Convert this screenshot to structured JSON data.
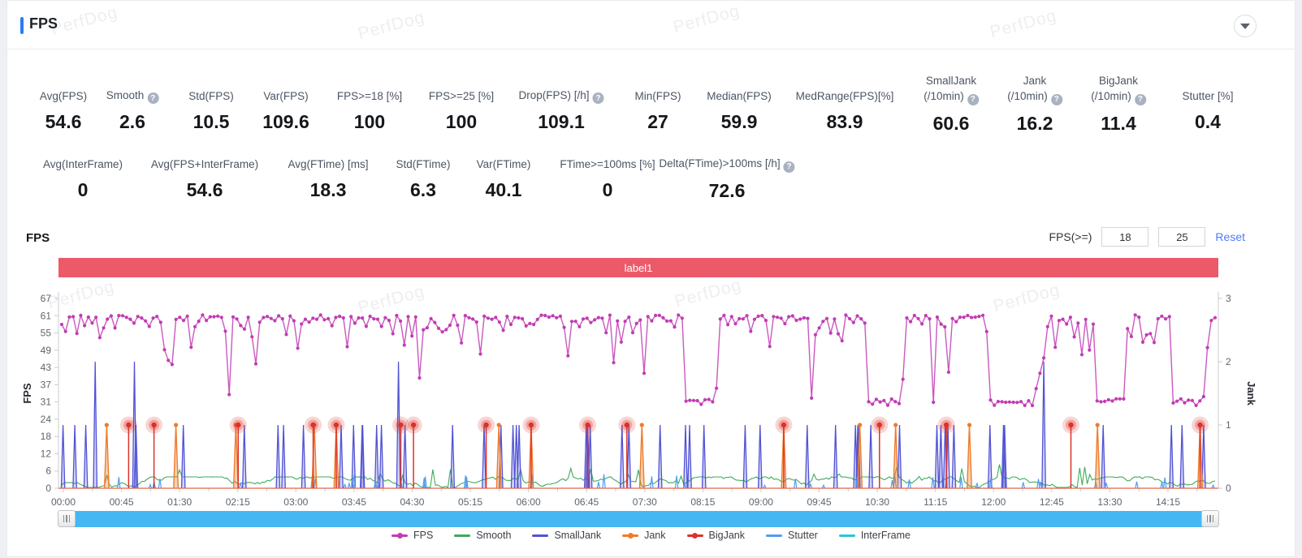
{
  "header": {
    "title": "FPS",
    "watermark": "PerfDog"
  },
  "stats_row1": [
    {
      "label": "Avg(FPS)",
      "value": "54.6"
    },
    {
      "label": "Smooth",
      "value": "2.6",
      "help": true
    },
    {
      "label": "Std(FPS)",
      "value": "10.5"
    },
    {
      "label": "Var(FPS)",
      "value": "109.6"
    },
    {
      "label": "FPS>=18 [%]",
      "value": "100"
    },
    {
      "label": "FPS>=25 [%]",
      "value": "100"
    },
    {
      "label": "Drop(FPS) [/h]",
      "value": "109.1",
      "help": true
    },
    {
      "label": "Min(FPS)",
      "value": "27"
    },
    {
      "label": "Median(FPS)",
      "value": "59.9"
    },
    {
      "label": "MedRange(FPS)[%]",
      "value": "83.9"
    },
    {
      "label": "SmallJank",
      "label2": "(/10min)",
      "value": "60.6",
      "help": true
    },
    {
      "label": "Jank",
      "label2": "(/10min)",
      "value": "16.2",
      "help": true
    },
    {
      "label": "BigJank",
      "label2": "(/10min)",
      "value": "11.4",
      "help": true
    },
    {
      "label": "Stutter [%]",
      "value": "0.4"
    }
  ],
  "stats_row2": [
    {
      "label": "Avg(InterFrame)",
      "value": "0"
    },
    {
      "label": "Avg(FPS+InterFrame)",
      "value": "54.6"
    },
    {
      "label": "Avg(FTime) [ms]",
      "value": "18.3"
    },
    {
      "label": "Std(FTime)",
      "value": "6.3"
    },
    {
      "label": "Var(FTime)",
      "value": "40.1"
    },
    {
      "label": "FTime>=100ms [%]",
      "value": "0"
    },
    {
      "label": "Delta(FTime)>100ms [/h]",
      "value": "72.6",
      "help": true
    }
  ],
  "chart_section": {
    "title": "FPS",
    "filter_label": "FPS(>=)",
    "filter_min": "18",
    "filter_max": "25",
    "reset_label": "Reset",
    "band_label": "label1"
  },
  "chart_data": {
    "type": "line",
    "title": "FPS",
    "band_label": "label1",
    "x_axis": {
      "ticks": [
        "00:00",
        "00:45",
        "01:30",
        "02:15",
        "03:00",
        "03:45",
        "04:30",
        "05:15",
        "06:00",
        "06:45",
        "07:30",
        "08:15",
        "09:00",
        "09:45",
        "10:30",
        "11:15",
        "12:00",
        "12:45",
        "13:30",
        "14:15"
      ]
    },
    "y_left": {
      "label": "FPS",
      "ticks": [
        0,
        6,
        12,
        18,
        24,
        31,
        37,
        43,
        49,
        55,
        61,
        67
      ],
      "max": 67
    },
    "y_right": {
      "label": "Jank",
      "ticks": [
        0,
        1,
        2,
        3
      ],
      "max": 3
    },
    "grid": false,
    "legend_position": "bottom",
    "series": [
      {
        "name": "FPS",
        "color": "#c13cb4",
        "marker": "dot",
        "kind": "fps-line",
        "baseline": 60.3,
        "low_value": 30,
        "low_windows": [
          [
            0.5399,
            0.5686
          ],
          [
            0.6989,
            0.7297
          ],
          [
            0.8025,
            0.8515
          ],
          [
            0.895,
            0.923
          ],
          [
            0.9636,
            0.9916
          ]
        ]
      },
      {
        "name": "Smooth",
        "color": "#3cab5a",
        "marker": "line",
        "kind": "noise-line",
        "range": [
          0,
          9
        ]
      },
      {
        "name": "SmallJank",
        "color": "#5153d4",
        "marker": "line",
        "kind": "spikes",
        "jank_value": 1,
        "count": 52,
        "tall_spikes": [
          0.029,
          0.063,
          0.292,
          0.8515
        ],
        "tall_value": 2
      },
      {
        "name": "Jank",
        "color": "#ee7c2b",
        "marker": "dot",
        "kind": "spikes-dot",
        "jank_value": 1,
        "positions": [
          0.039,
          0.099,
          0.151,
          0.219,
          0.238,
          0.379,
          0.407,
          0.503,
          0.626,
          0.692,
          0.723,
          0.787,
          0.898,
          0.987
        ]
      },
      {
        "name": "BigJank",
        "color": "#dd3228",
        "marker": "dot",
        "kind": "spikes-halo",
        "jank_value": 1,
        "positions": [
          0.058,
          0.08,
          0.153,
          0.218,
          0.238,
          0.294,
          0.305,
          0.368,
          0.407,
          0.456,
          0.49,
          0.626,
          0.709,
          0.767,
          0.875,
          0.987
        ]
      },
      {
        "name": "Stutter",
        "color": "#4f9df2",
        "marker": "line",
        "kind": "spikes-small",
        "count": 46
      },
      {
        "name": "InterFrame",
        "color": "#29c6d8",
        "marker": "line",
        "kind": "zero-line"
      }
    ]
  },
  "colors": {
    "accent_blue": "#2b7bf5",
    "band_red": "#ec5a6a",
    "scrollbar_blue": "#45b8f4",
    "reset_link": "#4a7dfc",
    "axis": "#c9ccd1",
    "tick_text": "#5f646b"
  }
}
